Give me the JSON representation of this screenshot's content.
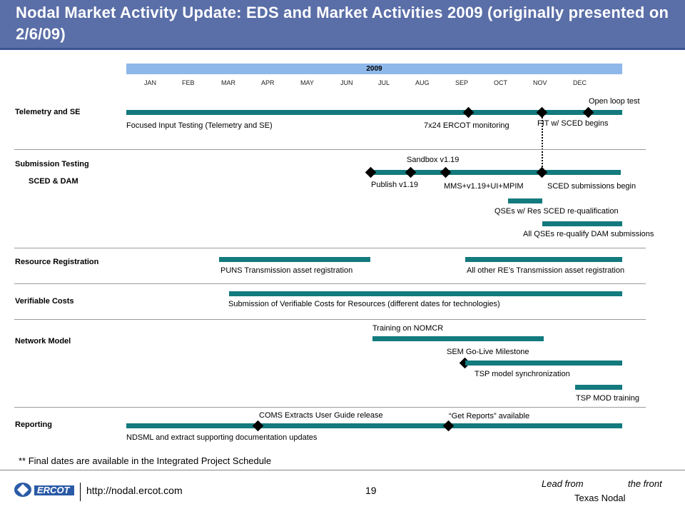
{
  "header": {
    "title": "Nodal Market Activity Update: EDS and Market Activities 2009 (originally presented on 2/6/09)"
  },
  "timeline": {
    "year": "2009",
    "months": [
      "JAN",
      "FEB",
      "MAR",
      "APR",
      "MAY",
      "JUN",
      "JUL",
      "AUG",
      "SEP",
      "OCT",
      "NOV",
      "DEC"
    ]
  },
  "sections": {
    "telemetry": {
      "label": "Telemetry and SE",
      "focused": "Focused Input Testing (Telemetry  and SE)",
      "monitoring": "7x24 ERCOT  monitoring",
      "fit": "FIT w/ SCED begins",
      "open_loop": "Open loop test"
    },
    "submission": {
      "label": "Submission Testing",
      "sublabel": "SCED & DAM",
      "sandbox": "Sandbox  v1.19",
      "publish": "Publish v1.19",
      "mms": "MMS+v1.19+UI+MPIM",
      "sced_begin": "SCED submissions begin",
      "qses_res": "QSEs w/ Res SCED re-qualification",
      "all_qses": "All QSEs re-qualify DAM submissions"
    },
    "resource": {
      "label": "Resource  Registration",
      "puns": "PUNS Transmission asset registration",
      "other": "All other RE’s Transmission asset registration"
    },
    "verifiable": {
      "label": "Verifiable Costs",
      "submission": "Submission of Verifiable Costs for Resources (different dates for technologies)"
    },
    "network": {
      "label": "Network Model",
      "training": "Training  on NOMCR",
      "sem": "SEM Go-Live Milestone",
      "tsp_sync": "TSP model synchronization",
      "tsp_mod": "TSP MOD training"
    },
    "reporting": {
      "label": "Reporting",
      "coms": "COMS Extracts User Guide release",
      "get_reports": "“Get Reports” available",
      "ndsml": "NDSML and extract supporting documentation updates"
    }
  },
  "footer": {
    "note": "** Final dates are available in the Integrated Project Schedule",
    "url": "http://nodal.ercot.com",
    "page": "19",
    "lead_a": "Lead from",
    "lead_b": "the front",
    "org": "Texas Nodal",
    "logo_text": "ERCOT"
  }
}
